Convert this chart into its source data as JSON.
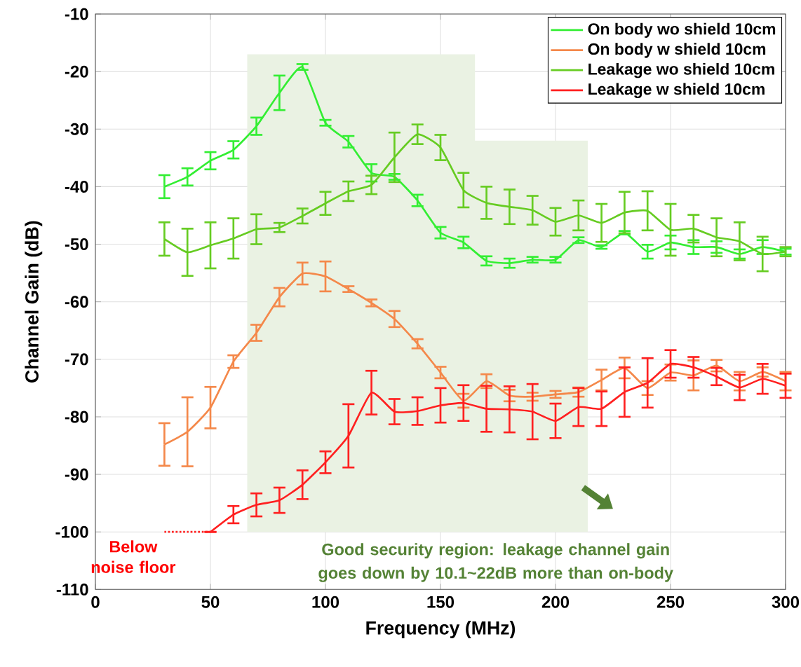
{
  "chart_data": {
    "type": "line",
    "xlabel": "Frequency (MHz)",
    "ylabel": "Channel Gain (dB)",
    "xlim": [
      0,
      300
    ],
    "ylim": [
      -110,
      -10
    ],
    "xticks": [
      0,
      50,
      100,
      150,
      200,
      250,
      300
    ],
    "yticks": [
      -110,
      -100,
      -90,
      -80,
      -70,
      -60,
      -50,
      -40,
      -30,
      -20,
      -10
    ],
    "grid": true,
    "legend": "top right",
    "marker": "none",
    "x": [
      30,
      40,
      50,
      60,
      70,
      80,
      90,
      100,
      110,
      120,
      130,
      140,
      150,
      160,
      170,
      180,
      190,
      200,
      210,
      220,
      230,
      240,
      250,
      260,
      270,
      280,
      290,
      300
    ],
    "series": [
      {
        "type": "area",
        "color": "#eaf2e3",
        "x": [
          66,
          66,
          165,
          165,
          214,
          214
        ],
        "values": [
          -100,
          -17,
          -17,
          -32,
          -32,
          -100
        ]
      },
      {
        "name": "On body wo shield 10cm",
        "color": "#33ee33",
        "line_style": "solid",
        "values": [
          -40,
          -38.3,
          -35.5,
          -33.6,
          -29.5,
          -23.7,
          -19.2,
          -28.9,
          -32.2,
          -37.6,
          -38.3,
          -42.4,
          -48,
          -49.7,
          -52.9,
          -53.3,
          -52.7,
          -52.7,
          -49.3,
          -50.5,
          -48,
          -51.3,
          -49.7,
          -50.5,
          -50.5,
          -51.7,
          -50.5,
          -51.3
        ],
        "errors": [
          2,
          1.5,
          1.5,
          1.5,
          1.5,
          3,
          0.5,
          0.5,
          1,
          1.5,
          0.5,
          1,
          1,
          1,
          0.8,
          0.8,
          0.5,
          0.5,
          0.5,
          0.3,
          0.3,
          1.2,
          1.2,
          1.2,
          1,
          0.8,
          1.2,
          0.5
        ]
      },
      {
        "name": "On body w shield 10cm",
        "color": "#f4884a",
        "line_style": "solid",
        "values": [
          -84.8,
          -82.6,
          -78.4,
          -70.4,
          -65.4,
          -59.2,
          -55.1,
          -55.6,
          -57.8,
          -60.2,
          -63,
          -67.3,
          -72.3,
          -77.2,
          -73.8,
          -76.3,
          -76.5,
          -76.1,
          -75.7,
          -73.6,
          -71.5,
          -75,
          -72.3,
          -72.8,
          -71.1,
          -73.8,
          -72.2,
          -73.8
        ],
        "errors": [
          3.7,
          6,
          3.6,
          1.1,
          1.4,
          1.6,
          1.9,
          2.6,
          0.5,
          0.6,
          1.4,
          0.8,
          1,
          1.2,
          1.2,
          1,
          0.7,
          0.6,
          0.8,
          1.8,
          1.8,
          1.2,
          1.4,
          2.6,
          1,
          1.6,
          0.8,
          1.6
        ]
      },
      {
        "name": "Leakage wo shield 10cm",
        "color": "#66cc22",
        "line_style": "solid",
        "values": [
          -49.1,
          -51.4,
          -50.2,
          -49,
          -47.4,
          -47.1,
          -45.1,
          -42.9,
          -40.8,
          -39.7,
          -34.9,
          -30.9,
          -33.2,
          -40.6,
          -42.8,
          -43.5,
          -44.1,
          -46.1,
          -45,
          -46.3,
          -44.5,
          -44.2,
          -47.5,
          -47.3,
          -48.8,
          -49.5,
          -51.7,
          -51.3
        ],
        "errors": [
          2.9,
          4.1,
          4,
          3.5,
          2.6,
          0.8,
          1.3,
          2,
          1.7,
          1.6,
          4.3,
          1.7,
          2.2,
          3,
          2.8,
          3,
          2.5,
          2.4,
          2.6,
          3.3,
          3.6,
          3.4,
          4.5,
          2.4,
          3.3,
          3.3,
          3,
          0.8
        ]
      },
      {
        "name": "Leakage w shield 10cm",
        "color": "#ff2020",
        "line_style": "solid",
        "values": [
          null,
          null,
          -100,
          -97,
          -95.3,
          -94.5,
          -91.8,
          -87.9,
          -83.3,
          -75.8,
          -79.1,
          -79,
          -78,
          -77.6,
          -78.6,
          -78.7,
          -79.1,
          -80.7,
          -78.3,
          -78.6,
          -75.7,
          -74.1,
          -70.8,
          -71.4,
          -73,
          -74.9,
          -73.4,
          -74.6
        ],
        "errors": [
          null,
          null,
          null,
          1.5,
          2,
          2.2,
          2.5,
          1.9,
          5.5,
          3.8,
          2.2,
          2.4,
          3,
          3.1,
          4,
          4,
          4.8,
          3,
          3.3,
          3,
          4.3,
          4.3,
          2.4,
          1.8,
          1.5,
          2.2,
          2.6,
          2.1
        ]
      },
      {
        "color": "#ff2020",
        "line_style": "dotted",
        "x": [
          30,
          40,
          50
        ],
        "values": [
          -100,
          -100,
          -100
        ]
      }
    ],
    "annotations": [
      {
        "text": "Below noise floor",
        "x": 40,
        "y": -100
      },
      "Good security region: leakage channel gain goes down by 10.1~22dB more than on-body"
    ]
  }
}
